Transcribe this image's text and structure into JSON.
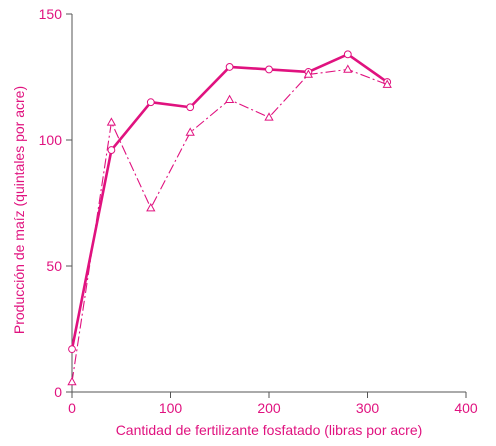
{
  "chart_data": {
    "type": "line",
    "xlabel": "Cantidad de fertilizante fosfatado (libras por acre)",
    "ylabel": "Producción de maíz (quintales por acre)",
    "xlim": [
      0,
      400
    ],
    "ylim": [
      0,
      150
    ],
    "x_ticks": [
      "0",
      "100",
      "200",
      "300",
      "400"
    ],
    "y_ticks": [
      "0",
      "50",
      "100",
      "150"
    ],
    "grid": false,
    "legend": "none",
    "series": [
      {
        "marker": "circle",
        "line_style": "solid",
        "color": "#e0127f",
        "points": [
          {
            "x": 0,
            "y": 17
          },
          {
            "x": 40,
            "y": 96
          },
          {
            "x": 80,
            "y": 115
          },
          {
            "x": 120,
            "y": 113
          },
          {
            "x": 160,
            "y": 129
          },
          {
            "x": 200,
            "y": 128
          },
          {
            "x": 240,
            "y": 127
          },
          {
            "x": 280,
            "y": 134
          },
          {
            "x": 320,
            "y": 123
          }
        ]
      },
      {
        "marker": "triangle",
        "line_style": "dash-dot",
        "color": "#e0127f",
        "points": [
          {
            "x": 0,
            "y": 4
          },
          {
            "x": 40,
            "y": 107
          },
          {
            "x": 80,
            "y": 73
          },
          {
            "x": 120,
            "y": 103
          },
          {
            "x": 160,
            "y": 116
          },
          {
            "x": 200,
            "y": 109
          },
          {
            "x": 240,
            "y": 126
          },
          {
            "x": 280,
            "y": 128
          },
          {
            "x": 320,
            "y": 122
          }
        ]
      }
    ]
  }
}
